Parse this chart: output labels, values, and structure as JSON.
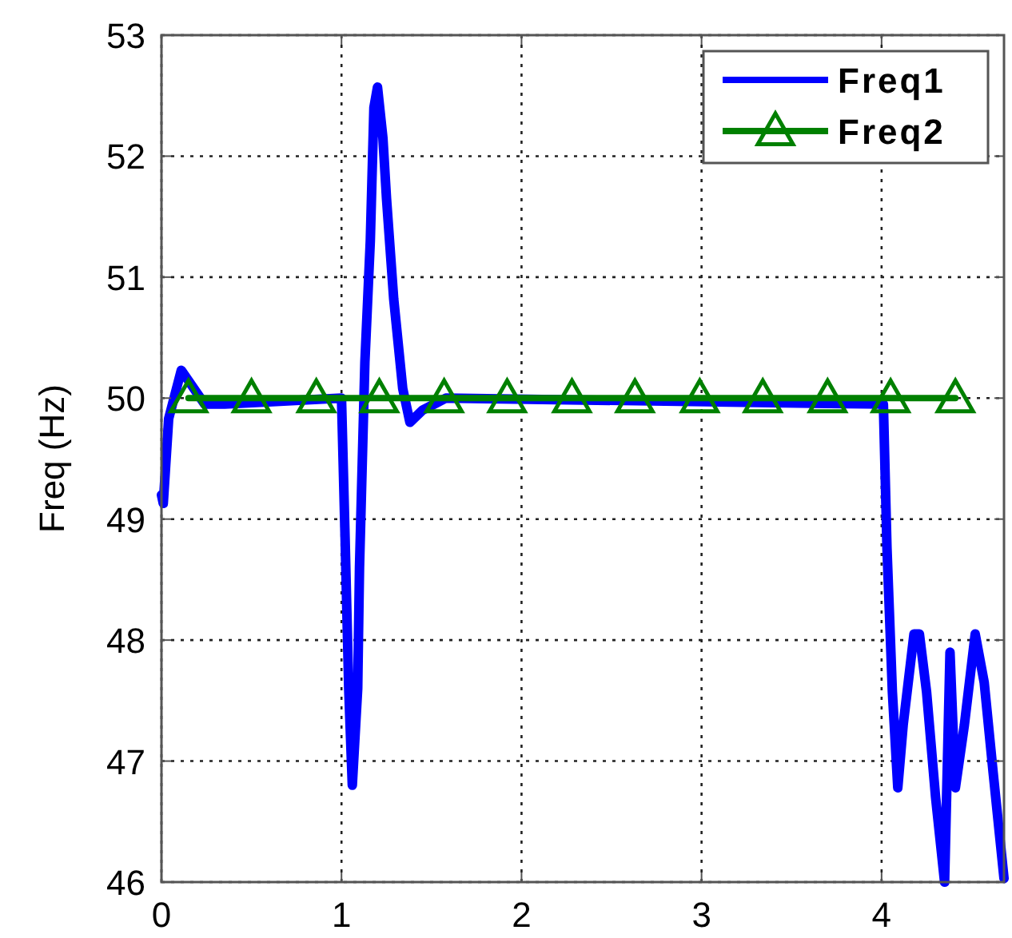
{
  "chart_data": {
    "type": "line",
    "ylabel": "Freq (Hz)",
    "xlim": [
      0,
      4.68
    ],
    "ylim": [
      46,
      53
    ],
    "xticks": [
      0,
      1,
      2,
      3,
      4
    ],
    "yticks": [
      46,
      47,
      48,
      49,
      50,
      51,
      52,
      53
    ],
    "grid": true,
    "legend": "top right",
    "series": [
      {
        "name": "Freq1",
        "color": "#0000ff",
        "marker": "none",
        "x": [
          0.0,
          0.01,
          0.04,
          0.11,
          0.24,
          0.35,
          1.0,
          1.02,
          1.04,
          1.06,
          1.09,
          1.1,
          1.13,
          1.16,
          1.18,
          1.2,
          1.23,
          1.25,
          1.29,
          1.34,
          1.38,
          1.45,
          1.58,
          4.01,
          4.03,
          4.06,
          4.09,
          4.12,
          4.18,
          4.21,
          4.25,
          4.3,
          4.35,
          4.38,
          4.41,
          4.46,
          4.52,
          4.57,
          4.62,
          4.68
        ],
        "values": [
          49.2,
          49.13,
          49.83,
          50.23,
          49.95,
          49.95,
          50,
          48.84,
          47.6,
          46.8,
          47.6,
          48.6,
          50.3,
          51.3,
          52.4,
          52.57,
          52.15,
          51.65,
          50.82,
          50.08,
          49.8,
          49.9,
          50,
          49.95,
          48.76,
          47.57,
          46.78,
          47.3,
          48.05,
          48.05,
          47.57,
          46.7,
          46.0,
          47.9,
          46.78,
          47.3,
          48.05,
          47.65,
          46.9,
          46.03
        ]
      },
      {
        "name": "Freq2",
        "color": "#008000",
        "marker": "triangle",
        "x": [
          0.15,
          0.5,
          0.86,
          1.21,
          1.57,
          1.92,
          2.28,
          2.63,
          2.99,
          3.34,
          3.7,
          4.05,
          4.41
        ],
        "values": [
          50,
          50,
          50,
          50,
          50,
          50,
          50,
          50,
          50,
          50,
          50,
          50,
          50
        ]
      }
    ]
  }
}
